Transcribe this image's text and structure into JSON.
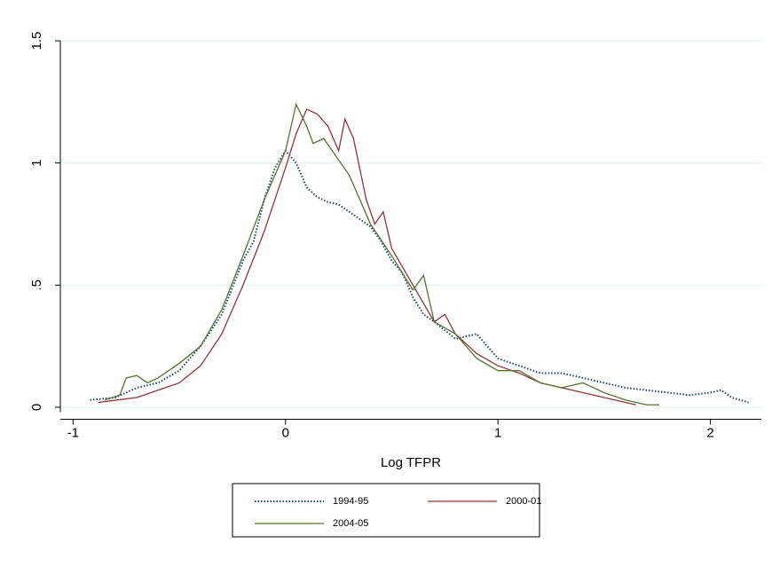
{
  "chart_data": {
    "type": "line",
    "x_label": "Log TFPR",
    "xlim": [
      -1.06,
      2.24
    ],
    "ylim": [
      -0.02,
      1.5
    ],
    "xticks": [
      -1,
      0,
      1,
      2
    ],
    "yticks": [
      0,
      {
        "value": 0.5,
        "label": ".5"
      },
      1,
      1.5
    ],
    "grid": true,
    "legend": "bottom",
    "series": [
      {
        "name": "1994-95",
        "color": "#1a476f",
        "dash": "dotted",
        "x": [
          -0.92,
          -0.8,
          -0.7,
          -0.6,
          -0.5,
          -0.4,
          -0.3,
          -0.2,
          -0.15,
          -0.1,
          -0.05,
          0,
          0.05,
          0.1,
          0.15,
          0.2,
          0.25,
          0.3,
          0.35,
          0.4,
          0.45,
          0.5,
          0.55,
          0.6,
          0.65,
          0.7,
          0.8,
          0.9,
          1.0,
          1.1,
          1.2,
          1.3,
          1.4,
          1.5,
          1.6,
          1.7,
          1.8,
          1.9,
          2.0,
          2.05,
          2.1,
          2.18
        ],
        "values": [
          0.03,
          0.04,
          0.08,
          0.1,
          0.15,
          0.25,
          0.38,
          0.6,
          0.68,
          0.85,
          0.98,
          1.05,
          1.0,
          0.9,
          0.86,
          0.84,
          0.83,
          0.8,
          0.77,
          0.74,
          0.68,
          0.6,
          0.55,
          0.45,
          0.38,
          0.35,
          0.28,
          0.3,
          0.2,
          0.17,
          0.14,
          0.14,
          0.12,
          0.1,
          0.08,
          0.07,
          0.06,
          0.05,
          0.06,
          0.07,
          0.04,
          0.02
        ]
      },
      {
        "name": "2000-01",
        "color": "#90353b",
        "dash": "solid",
        "x": [
          -0.88,
          -0.7,
          -0.6,
          -0.5,
          -0.4,
          -0.3,
          -0.2,
          -0.1,
          0,
          0.05,
          0.1,
          0.15,
          0.2,
          0.25,
          0.28,
          0.32,
          0.38,
          0.42,
          0.46,
          0.5,
          0.6,
          0.7,
          0.75,
          0.8,
          0.9,
          1.0,
          1.1,
          1.2,
          1.3,
          1.4,
          1.5,
          1.6,
          1.65
        ],
        "values": [
          0.02,
          0.04,
          0.07,
          0.1,
          0.17,
          0.3,
          0.5,
          0.72,
          0.98,
          1.12,
          1.22,
          1.2,
          1.15,
          1.05,
          1.18,
          1.1,
          0.85,
          0.75,
          0.8,
          0.65,
          0.5,
          0.35,
          0.38,
          0.3,
          0.22,
          0.17,
          0.14,
          0.1,
          0.08,
          0.06,
          0.04,
          0.02,
          0.01
        ]
      },
      {
        "name": "2004-05",
        "color": "#55752f",
        "dash": "solid",
        "x": [
          -0.85,
          -0.78,
          -0.75,
          -0.7,
          -0.65,
          -0.6,
          -0.5,
          -0.4,
          -0.3,
          -0.2,
          -0.1,
          0,
          0.05,
          0.1,
          0.13,
          0.18,
          0.22,
          0.3,
          0.4,
          0.5,
          0.6,
          0.65,
          0.7,
          0.8,
          0.9,
          1.0,
          1.1,
          1.2,
          1.3,
          1.4,
          1.5,
          1.6,
          1.7,
          1.76
        ],
        "values": [
          0.03,
          0.05,
          0.12,
          0.13,
          0.1,
          0.12,
          0.18,
          0.25,
          0.4,
          0.62,
          0.85,
          1.05,
          1.24,
          1.15,
          1.08,
          1.1,
          1.05,
          0.95,
          0.75,
          0.62,
          0.48,
          0.54,
          0.35,
          0.3,
          0.2,
          0.15,
          0.15,
          0.1,
          0.08,
          0.1,
          0.06,
          0.03,
          0.01,
          0.01
        ]
      }
    ]
  }
}
